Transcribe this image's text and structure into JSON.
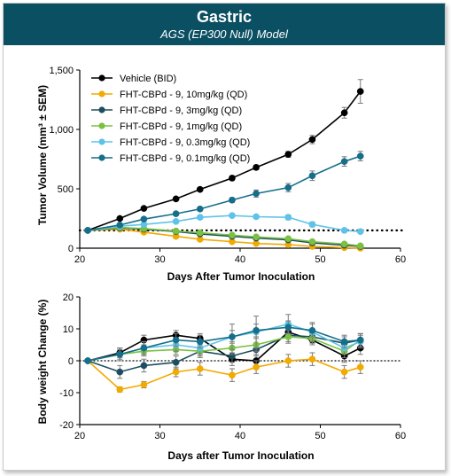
{
  "header": {
    "title": "Gastric",
    "subtitle": "AGS (EP300 Null) Model"
  },
  "colors": {
    "header_bg": "#0b4f63",
    "vehicle": "#000000",
    "s10": "#f2a900",
    "s3": "#1d4e5f",
    "s1": "#7ac143",
    "s03": "#5ec3e8",
    "s01": "#156f8a"
  },
  "chart_data": [
    {
      "type": "line",
      "xlabel": "Days After Tumor Inoculation",
      "ylabel": "Tumor Volume (mm³ ± SEM)",
      "xlim": [
        20,
        60
      ],
      "ylim": [
        0,
        1500
      ],
      "xticks": [
        "20",
        "30",
        "40",
        "50",
        "60"
      ],
      "yticks": [
        "0",
        "500",
        "1,000",
        "1,500"
      ],
      "reference_line": 150,
      "legend_position": "top-left",
      "series": [
        {
          "name": "Vehicle (BID)",
          "color_key": "vehicle",
          "x": [
            21,
            25,
            28,
            32,
            35,
            39,
            42,
            46,
            49,
            53,
            55
          ],
          "y": [
            150,
            250,
            335,
            415,
            495,
            590,
            680,
            790,
            915,
            1140,
            1320
          ],
          "err": [
            5,
            10,
            15,
            15,
            15,
            20,
            20,
            25,
            35,
            45,
            100
          ]
        },
        {
          "name": "FHT-CBPd - 9, 10mg/kg (QD)",
          "color_key": "s10",
          "x": [
            21,
            25,
            28,
            32,
            35,
            39,
            42,
            46,
            49,
            53,
            55
          ],
          "y": [
            150,
            160,
            135,
            100,
            75,
            55,
            40,
            30,
            15,
            5,
            0
          ],
          "err": [
            5,
            8,
            8,
            8,
            8,
            6,
            6,
            5,
            5,
            3,
            2
          ]
        },
        {
          "name": "FHT-CBPd - 9, 3mg/kg (QD)",
          "color_key": "s3",
          "x": [
            21,
            25,
            28,
            32,
            35,
            39,
            42,
            46,
            49,
            53,
            55
          ],
          "y": [
            150,
            170,
            160,
            140,
            120,
            100,
            85,
            70,
            45,
            25,
            15
          ],
          "err": [
            5,
            8,
            8,
            8,
            8,
            6,
            6,
            6,
            5,
            4,
            3
          ]
        },
        {
          "name": "FHT-CBPd - 9, 1mg/kg (QD)",
          "color_key": "s1",
          "x": [
            21,
            25,
            28,
            32,
            35,
            39,
            42,
            46,
            49,
            53,
            55
          ],
          "y": [
            150,
            175,
            165,
            145,
            130,
            110,
            95,
            80,
            55,
            35,
            20
          ],
          "err": [
            5,
            8,
            8,
            8,
            8,
            6,
            6,
            6,
            5,
            4,
            3
          ]
        },
        {
          "name": "FHT-CBPd - 9, 0.3mg/kg (QD)",
          "color_key": "s03",
          "x": [
            21,
            25,
            28,
            32,
            35,
            39,
            42,
            46,
            49,
            53,
            55
          ],
          "y": [
            150,
            185,
            200,
            225,
            260,
            275,
            265,
            260,
            200,
            150,
            140
          ],
          "err": [
            5,
            10,
            10,
            12,
            15,
            15,
            15,
            20,
            20,
            15,
            10
          ]
        },
        {
          "name": "FHT-CBPd - 9, 0.1mg/kg (QD)",
          "color_key": "s01",
          "x": [
            21,
            25,
            28,
            32,
            35,
            39,
            42,
            46,
            49,
            53,
            55
          ],
          "y": [
            150,
            195,
            245,
            290,
            330,
            405,
            460,
            510,
            610,
            730,
            775
          ],
          "err": [
            5,
            10,
            15,
            15,
            15,
            20,
            30,
            35,
            40,
            40,
            40
          ]
        }
      ]
    },
    {
      "type": "line",
      "xlabel": "Days after Tumor Inoculation",
      "ylabel": "Body weight Change (%)",
      "xlim": [
        20,
        60
      ],
      "ylim": [
        -20,
        20
      ],
      "xticks": [
        "20",
        "30",
        "40",
        "50",
        "60"
      ],
      "yticks": [
        "-20",
        "-10",
        "0",
        "10",
        "20"
      ],
      "reference_line": 0,
      "series": [
        {
          "color_key": "vehicle",
          "x": [
            21,
            25,
            28,
            32,
            35,
            39,
            42,
            46,
            49,
            53,
            55
          ],
          "y": [
            0,
            2.5,
            6.5,
            8,
            7,
            0.5,
            0,
            9,
            6.5,
            1.5,
            4
          ],
          "err": [
            0,
            1.5,
            1.5,
            1.5,
            1.5,
            2,
            2,
            2,
            1.5,
            2,
            2
          ]
        },
        {
          "color_key": "s10",
          "x": [
            21,
            25,
            28,
            32,
            35,
            39,
            42,
            46,
            49,
            53,
            55
          ],
          "y": [
            0,
            -9,
            -7.5,
            -3.5,
            -2.5,
            -4.5,
            -2,
            0,
            0.5,
            -3.5,
            -2
          ],
          "err": [
            0,
            0.8,
            1,
            1.5,
            2,
            2,
            2,
            2,
            2,
            2,
            2
          ]
        },
        {
          "color_key": "s3",
          "x": [
            21,
            25,
            28,
            32,
            35,
            39,
            42,
            46,
            49,
            53,
            55
          ],
          "y": [
            0,
            -3.5,
            -1.5,
            -0.5,
            3,
            1.5,
            3.5,
            8,
            7.5,
            5.5,
            6.5
          ],
          "err": [
            0,
            2,
            2,
            2,
            2,
            2,
            2,
            2,
            2,
            2,
            2
          ]
        },
        {
          "color_key": "s1",
          "x": [
            21,
            25,
            28,
            32,
            35,
            39,
            42,
            46,
            49,
            53,
            55
          ],
          "y": [
            0,
            2,
            3,
            3.5,
            3,
            4,
            5,
            7.5,
            7,
            3,
            6.5
          ],
          "err": [
            0,
            1.5,
            1.5,
            1.5,
            1.5,
            2,
            2,
            2,
            2,
            2,
            2
          ]
        },
        {
          "color_key": "s03",
          "x": [
            21,
            25,
            28,
            32,
            35,
            39,
            42,
            46,
            49,
            53,
            55
          ],
          "y": [
            0,
            2,
            4,
            5,
            4,
            7.5,
            9,
            11.5,
            9,
            4,
            6
          ],
          "err": [
            0,
            2,
            2,
            2,
            2,
            4,
            5,
            3,
            3,
            2,
            2
          ]
        },
        {
          "color_key": "s01",
          "x": [
            21,
            25,
            28,
            32,
            35,
            39,
            42,
            46,
            49,
            53,
            55
          ],
          "y": [
            0,
            2,
            4,
            6.5,
            6,
            7.5,
            9.5,
            10.5,
            9.5,
            6,
            6.5
          ],
          "err": [
            0,
            2,
            2,
            2,
            2,
            2,
            2,
            2,
            2,
            2,
            2
          ]
        }
      ]
    }
  ]
}
